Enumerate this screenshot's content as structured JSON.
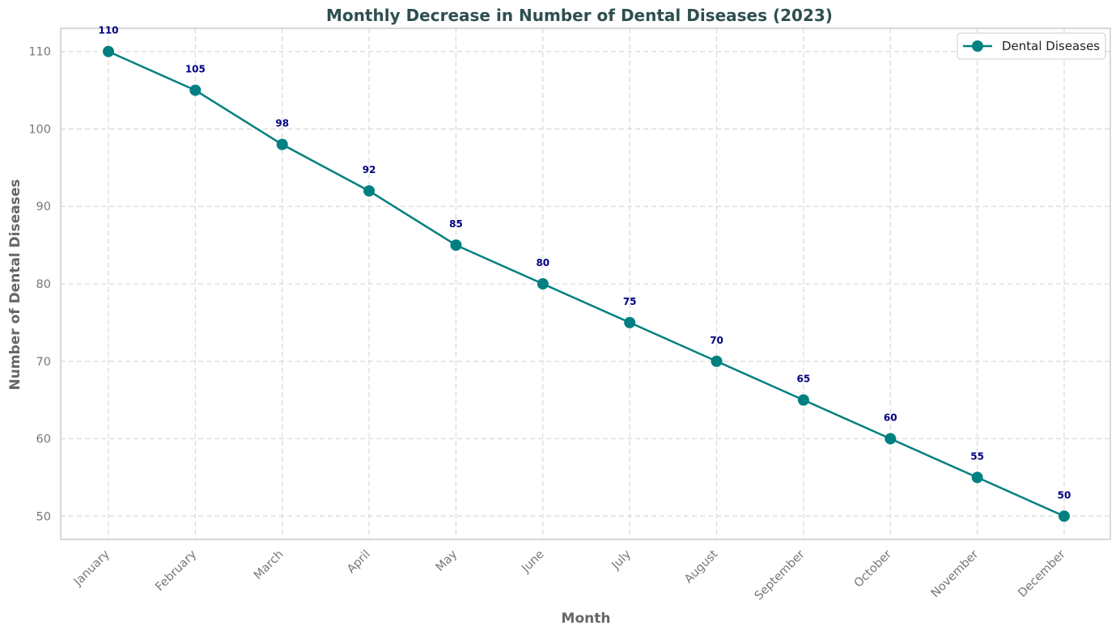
{
  "chart_data": {
    "type": "line",
    "title": "Monthly Decrease in Number of Dental Diseases (2023)",
    "xlabel": "Month",
    "ylabel": "Number of Dental Diseases",
    "categories": [
      "January",
      "February",
      "March",
      "April",
      "May",
      "June",
      "July",
      "August",
      "September",
      "October",
      "November",
      "December"
    ],
    "series": [
      {
        "name": "Dental Diseases",
        "values": [
          110,
          105,
          98,
          92,
          85,
          80,
          75,
          70,
          65,
          60,
          55,
          50
        ]
      }
    ],
    "yticks": [
      50,
      60,
      70,
      80,
      90,
      100,
      110
    ],
    "ylim": [
      47,
      113
    ],
    "grid": true,
    "legend": "top-right",
    "colors": {
      "line": "#008080",
      "title": "#2F4F4F",
      "data_label": "#000080",
      "axis_label": "#666666",
      "tick_label": "#777777",
      "grid": "#d9d9d9",
      "frame": "#cccccc"
    }
  }
}
